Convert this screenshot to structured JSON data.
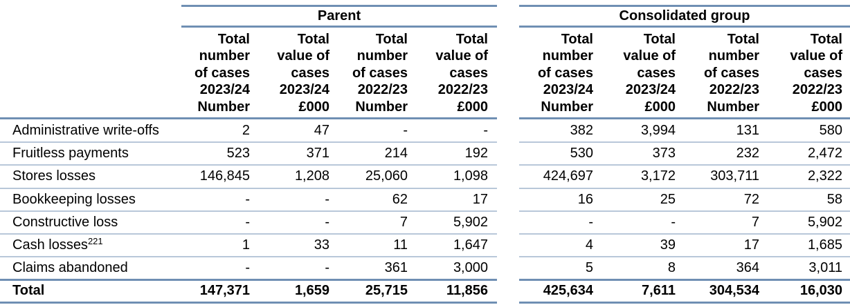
{
  "groups": {
    "parent": "Parent",
    "consolidated": "Consolidated group"
  },
  "columns": [
    [
      "Total",
      "number",
      "of cases",
      "2023/24",
      "Number"
    ],
    [
      "Total",
      "value of",
      "cases",
      "2023/24",
      "£000"
    ],
    [
      "Total",
      "number",
      "of cases",
      "2022/23",
      "Number"
    ],
    [
      "Total",
      "value of",
      "cases",
      "2022/23",
      "£000"
    ],
    [
      "Total",
      "number",
      "of cases",
      "2023/24",
      "Number"
    ],
    [
      "Total",
      "value of",
      "cases",
      "2023/24",
      "£000"
    ],
    [
      "Total",
      "number",
      "of cases",
      "2022/23",
      "Number"
    ],
    [
      "Total",
      "value of",
      "cases",
      "2022/23",
      "£000"
    ]
  ],
  "rows": [
    {
      "label": "Administrative write-offs",
      "sup": "",
      "values": [
        "2",
        "47",
        "-",
        "-",
        "382",
        "3,994",
        "131",
        "580"
      ]
    },
    {
      "label": "Fruitless payments",
      "sup": "",
      "values": [
        "523",
        "371",
        "214",
        "192",
        "530",
        "373",
        "232",
        "2,472"
      ]
    },
    {
      "label": "Stores losses",
      "sup": "",
      "values": [
        "146,845",
        "1,208",
        "25,060",
        "1,098",
        "424,697",
        "3,172",
        "303,711",
        "2,322"
      ]
    },
    {
      "label": "Bookkeeping losses",
      "sup": "",
      "values": [
        "-",
        "-",
        "62",
        "17",
        "16",
        "25",
        "72",
        "58"
      ]
    },
    {
      "label": "Constructive loss",
      "sup": "",
      "values": [
        "-",
        "-",
        "7",
        "5,902",
        "-",
        "-",
        "7",
        "5,902"
      ]
    },
    {
      "label": "Cash losses",
      "sup": "221",
      "values": [
        "1",
        "33",
        "11",
        "1,647",
        "4",
        "39",
        "17",
        "1,685"
      ]
    },
    {
      "label": "Claims abandoned",
      "sup": "",
      "values": [
        "-",
        "-",
        "361",
        "3,000",
        "5",
        "8",
        "364",
        "3,011"
      ]
    }
  ],
  "total": {
    "label": "Total",
    "values": [
      "147,371",
      "1,659",
      "25,715",
      "11,856",
      "425,634",
      "7,611",
      "304,534",
      "16,030"
    ]
  }
}
